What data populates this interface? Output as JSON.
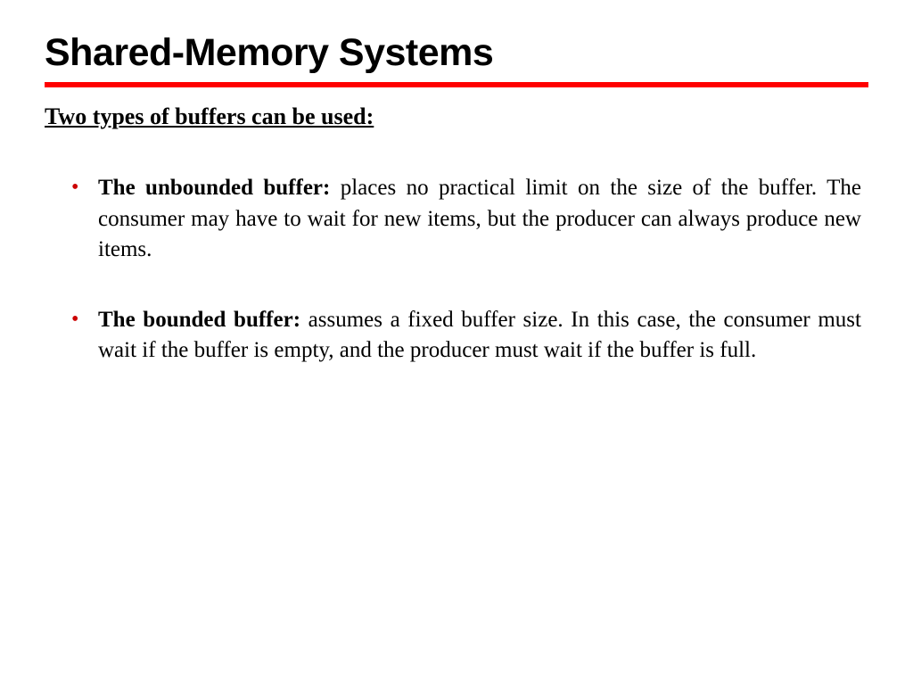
{
  "slide": {
    "title": "Shared-Memory Systems",
    "subheading": "Two types of buffers can be used:",
    "bullets": [
      {
        "lead": "The unbounded buffer:",
        "body": " places no practical limit on the size of the buffer. The consumer may have to wait for new items, but the producer can always produce new items."
      },
      {
        "lead": "The bounded buffer:",
        "body": " assumes a fixed buffer size. In this case, the consumer must wait if the buffer is empty, and the producer must wait if the buffer is full."
      }
    ]
  },
  "style": {
    "title_color": "#000000",
    "underline_color": "#ff0000",
    "bullet_marker_color": "#cc0000",
    "body_text_color": "#000000",
    "background_color": "#ffffff",
    "title_fontsize": 43,
    "subheading_fontsize": 26,
    "body_fontsize": 25,
    "title_font": "Arial",
    "body_font": "Times New Roman"
  }
}
